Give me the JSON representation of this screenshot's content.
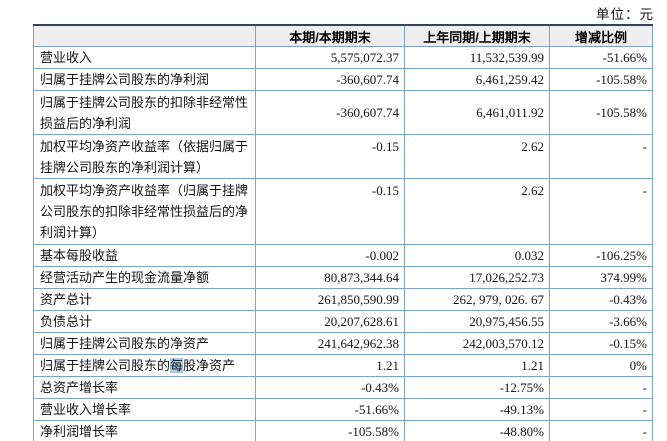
{
  "page": {
    "unit_label": "单位：元"
  },
  "colors": {
    "table_border_inner": "#7ca4ca",
    "table_border_top": "#32455c",
    "table_border_bottom": "#5b86b3",
    "header_background": "#efefef",
    "text_selection_highlight": "#aecbe5"
  },
  "table": {
    "headers": {
      "label": "",
      "current": "本期/本期期末",
      "prior": "上年同期/上期期末",
      "change": "增减比例"
    },
    "rows": [
      {
        "label": "营业收入",
        "current": "5,575,072.37",
        "prior": "11,532,539.99",
        "change": "-51.66%"
      },
      {
        "label": "归属于挂牌公司股东的净利润",
        "current": "-360,607.74",
        "prior": "6,461,259.42",
        "change": "-105.58%"
      },
      {
        "label": "归属于挂牌公司股东的扣除非经常性损益后的净利润",
        "current": "-360,607.74",
        "prior": "6,461,011.92",
        "change": "-105.58%"
      },
      {
        "label": "加权平均净资产收益率（依据归属于挂牌公司股东的净利润计算）",
        "current": "-0.15",
        "prior": "2.62",
        "change": "-"
      },
      {
        "label": "加权平均净资产收益率（归属于挂牌公司股东的扣除非经常性损益后的净利润计算）",
        "current": "-0.15",
        "prior": "2.62",
        "change": "-"
      },
      {
        "label": "基本每股收益",
        "current": "-0.002",
        "prior": "0.032",
        "change": "-106.25%"
      },
      {
        "label": "经营活动产生的现金流量净额",
        "current": "80,873,344.64",
        "prior": "17,026,252.73",
        "change": "374.99%"
      },
      {
        "label": "资产总计",
        "current": "261,850,590.99",
        "prior": "262, 979, 026. 67",
        "change": "-0.43%"
      },
      {
        "label": "负债总计",
        "current": "20,207,628.61",
        "prior": "20,975,456.55",
        "change": "-3.66%"
      },
      {
        "label": "归属于挂牌公司股东的净资产",
        "current": "241,642,962.38",
        "prior": "242,003,570.12",
        "change": "-0.15%"
      },
      {
        "label_prefix": "归属于挂牌公司股东的",
        "label_highlight": "每",
        "label_suffix": "股净资产",
        "current": "1.21",
        "prior": "1.21",
        "change": "0%"
      },
      {
        "label": "总资产增长率",
        "current": "-0.43%",
        "prior": "-12.75%",
        "change": "-"
      },
      {
        "label": "营业收入增长率",
        "current": "-51.66%",
        "prior": "-49.13%",
        "change": "-"
      },
      {
        "label": "净利润增长率",
        "current": "-105.58%",
        "prior": "-48.80%",
        "change": "-"
      }
    ]
  }
}
